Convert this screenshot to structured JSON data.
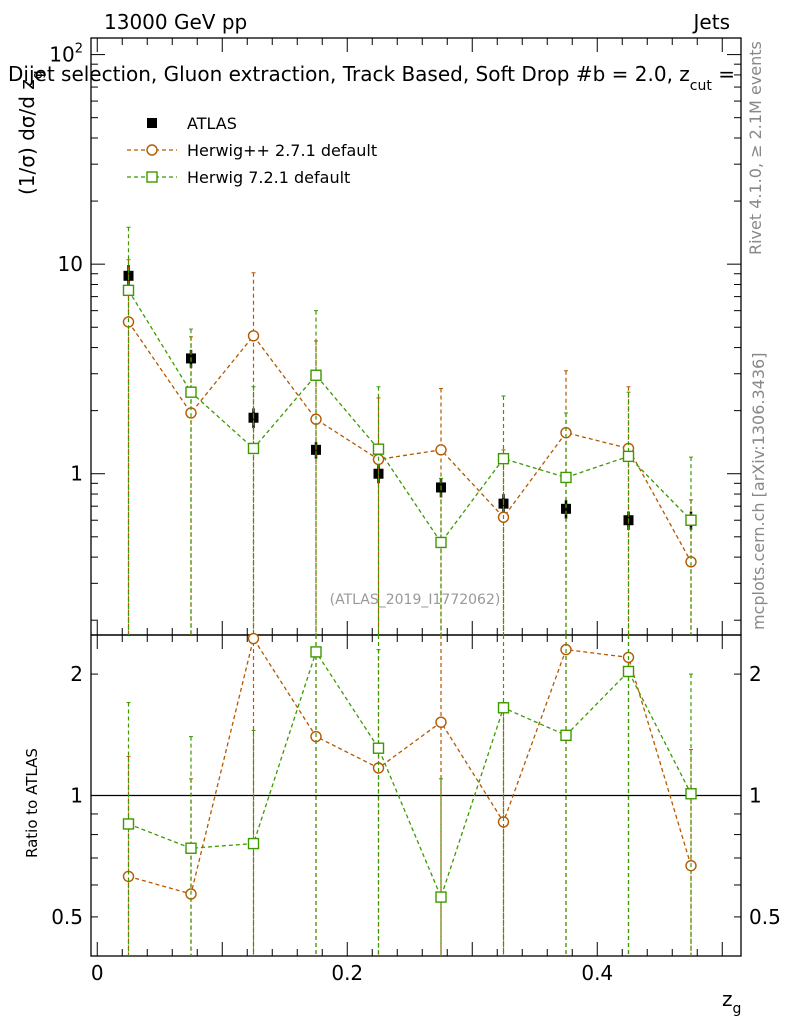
{
  "header": {
    "energy_label": "13000 GeV pp",
    "process_label": "Jets",
    "plot_title": "Dijet selection, Gluon extraction, Track Based, Soft Drop #b = 2.0, z",
    "plot_title_sub": "cut",
    "plot_title_tail": " ="
  },
  "side_labels": {
    "rivet": "Rivet 4.1.0, ≥ 2.1M events",
    "mcplots": "mcplots.cern.ch [arXiv:1306.3436]"
  },
  "watermark": "(ATLAS_2019_I1772062)",
  "colors": {
    "atlas": "#000000",
    "herwigpp": "#b35900",
    "herwig7": "#3d9900"
  },
  "chart_data": [
    {
      "id": "main",
      "type": "scatter",
      "ylabel": "(1/σ) dσ/d z_g",
      "ylabel_parts": {
        "prefix": "(1/σ) dσ/d z",
        "sub": "g"
      },
      "yscale": "log",
      "ylim": [
        0.17,
        120
      ],
      "xlim": [
        -0.005,
        0.515
      ],
      "y_ticks": [
        {
          "value": 1,
          "label": "1"
        },
        {
          "value": 10,
          "label": "10"
        },
        {
          "value": 100,
          "label": "10",
          "sup": "2"
        }
      ],
      "legend": [
        "ATLAS",
        "Herwig++ 2.7.1 default",
        "Herwig 7.2.1 default"
      ],
      "x": [
        0.025,
        0.075,
        0.125,
        0.175,
        0.225,
        0.275,
        0.325,
        0.375,
        0.425,
        0.475
      ],
      "series": [
        {
          "name": "ATLAS",
          "marker": "filled-square",
          "values": [
            8.8,
            3.55,
            1.85,
            1.3,
            1.0,
            0.86,
            0.72,
            0.68,
            0.6,
            0.6
          ],
          "err_up": [
            9.9,
            3.9,
            2.05,
            1.42,
            1.1,
            0.95,
            0.8,
            0.75,
            0.66,
            0.66
          ],
          "err_down": [
            7.8,
            3.2,
            1.65,
            1.18,
            0.9,
            0.77,
            0.64,
            0.61,
            0.54,
            0.54
          ]
        },
        {
          "name": "Herwig++ 2.7.1 default",
          "marker": "open-circle",
          "values": [
            5.3,
            1.95,
            4.55,
            1.82,
            1.17,
            1.3,
            0.62,
            1.57,
            1.32,
            0.38
          ],
          "err_up": [
            10.5,
            4.5,
            9.1,
            4.3,
            2.3,
            2.55,
            1.3,
            3.1,
            2.6,
            0.75
          ],
          "err_down": [
            0.001,
            0.001,
            0.001,
            0.001,
            0.001,
            0.001,
            0.001,
            0.001,
            0.001,
            0.001
          ]
        },
        {
          "name": "Herwig 7.2.1 default",
          "marker": "open-square",
          "values": [
            7.5,
            2.45,
            1.32,
            2.95,
            1.31,
            0.47,
            1.18,
            0.96,
            1.21,
            0.6
          ],
          "err_up": [
            15.0,
            4.9,
            2.6,
            6.0,
            2.6,
            0.95,
            2.35,
            1.95,
            2.45,
            1.2
          ],
          "err_down": [
            0.001,
            0.001,
            0.001,
            0.001,
            0.001,
            0.001,
            0.001,
            0.001,
            0.001,
            0.001
          ]
        }
      ]
    },
    {
      "id": "ratio",
      "type": "line",
      "ylabel": "Ratio to ATLAS",
      "xlabel": "z_g",
      "xlabel_parts": {
        "prefix": "z",
        "sub": "g"
      },
      "yscale": "log",
      "ylim": [
        0.4,
        2.5
      ],
      "xlim": [
        -0.005,
        0.515
      ],
      "reference_line": 1,
      "y_ticks": [
        {
          "value": 0.5,
          "label": "0.5"
        },
        {
          "value": 1,
          "label": "1"
        },
        {
          "value": 2,
          "label": "2"
        }
      ],
      "x_ticks": [
        {
          "value": 0,
          "label": "0"
        },
        {
          "value": 0.2,
          "label": "0.2"
        },
        {
          "value": 0.4,
          "label": "0.4"
        }
      ],
      "x": [
        0.025,
        0.075,
        0.125,
        0.175,
        0.225,
        0.275,
        0.325,
        0.375,
        0.425,
        0.475
      ],
      "series": [
        {
          "name": "Herwig++ 2.7.1 default",
          "marker": "open-circle",
          "values": [
            0.63,
            0.57,
            2.45,
            1.4,
            1.17,
            1.52,
            0.86,
            2.3,
            2.2,
            0.67
          ],
          "err_up": [
            1.25,
            1.1,
            4.9,
            3.3,
            2.3,
            3.0,
            1.7,
            4.6,
            4.4,
            1.3
          ],
          "err_down": [
            0.001,
            0.001,
            0.001,
            0.001,
            0.001,
            0.001,
            0.001,
            0.001,
            0.001,
            0.001
          ]
        },
        {
          "name": "Herwig 7.2.1 default",
          "marker": "open-square",
          "values": [
            0.85,
            0.74,
            0.76,
            2.27,
            1.31,
            0.56,
            1.65,
            1.41,
            2.03,
            1.01
          ],
          "err_up": [
            1.7,
            1.4,
            1.45,
            4.6,
            2.6,
            1.1,
            3.3,
            2.8,
            4.0,
            2.0
          ],
          "err_down": [
            0.001,
            0.001,
            0.001,
            0.001,
            0.001,
            0.001,
            0.001,
            0.001,
            0.001,
            0.001
          ]
        }
      ]
    }
  ]
}
